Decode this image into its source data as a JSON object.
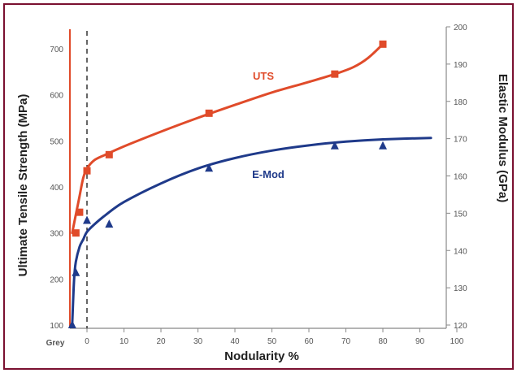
{
  "colors": {
    "frame": "#7a1030",
    "uts": "#e04b2a",
    "emod": "#1f3a8a",
    "axis": "#555555",
    "dashed": "#000000"
  },
  "chart_data": {
    "type": "scatter",
    "xlabel": "Nodularity %",
    "x_special_label": "Grey",
    "x_ticks": [
      0,
      10,
      20,
      30,
      40,
      50,
      60,
      70,
      80,
      90,
      100
    ],
    "xlim": [
      -4,
      100
    ],
    "ylabel_left": "Ultimate Tensile Strength (MPa)",
    "ylim_left": [
      100,
      750
    ],
    "yticks_left": [
      100,
      200,
      300,
      400,
      500,
      600,
      700
    ],
    "ylabel_right": "Elastic Modulus (GPa)",
    "ylim_right": [
      120,
      200
    ],
    "yticks_right": [
      120,
      130,
      140,
      150,
      160,
      170,
      180,
      190,
      200
    ],
    "reference_line_x": 0,
    "series": [
      {
        "name": "UTS",
        "axis": "left",
        "marker": "square",
        "color": "#e04b2a",
        "points": [
          {
            "x": -3,
            "y": 300
          },
          {
            "x": -2,
            "y": 345
          },
          {
            "x": 0,
            "y": 435
          },
          {
            "x": 6,
            "y": 470
          },
          {
            "x": 33,
            "y": 560
          },
          {
            "x": 67,
            "y": 645
          },
          {
            "x": 80,
            "y": 710
          }
        ],
        "fit": [
          {
            "x": -4,
            "y": 300
          },
          {
            "x": -3,
            "y": 340
          },
          {
            "x": -2,
            "y": 380
          },
          {
            "x": -1,
            "y": 420
          },
          {
            "x": 0,
            "y": 440
          },
          {
            "x": 2,
            "y": 458
          },
          {
            "x": 5,
            "y": 470
          },
          {
            "x": 10,
            "y": 488
          },
          {
            "x": 20,
            "y": 520
          },
          {
            "x": 30,
            "y": 550
          },
          {
            "x": 40,
            "y": 578
          },
          {
            "x": 50,
            "y": 605
          },
          {
            "x": 60,
            "y": 628
          },
          {
            "x": 67,
            "y": 645
          },
          {
            "x": 72,
            "y": 660
          },
          {
            "x": 76,
            "y": 680
          },
          {
            "x": 80,
            "y": 710
          }
        ]
      },
      {
        "name": "E-Mod",
        "axis": "right",
        "marker": "triangle",
        "color": "#1f3a8a",
        "points": [
          {
            "x": -4,
            "y": 120
          },
          {
            "x": -3,
            "y": 134
          },
          {
            "x": 0,
            "y": 148
          },
          {
            "x": 6,
            "y": 147
          },
          {
            "x": 33,
            "y": 162
          },
          {
            "x": 67,
            "y": 168
          },
          {
            "x": 80,
            "y": 168
          }
        ],
        "fit": [
          {
            "x": -4,
            "y": 120
          },
          {
            "x": -3.5,
            "y": 132
          },
          {
            "x": -3,
            "y": 137
          },
          {
            "x": -2,
            "y": 141
          },
          {
            "x": -1,
            "y": 143
          },
          {
            "x": 0,
            "y": 145
          },
          {
            "x": 2,
            "y": 147
          },
          {
            "x": 5,
            "y": 149.5
          },
          {
            "x": 10,
            "y": 153
          },
          {
            "x": 20,
            "y": 158
          },
          {
            "x": 30,
            "y": 162
          },
          {
            "x": 40,
            "y": 164.8
          },
          {
            "x": 50,
            "y": 166.8
          },
          {
            "x": 60,
            "y": 168.2
          },
          {
            "x": 70,
            "y": 169.2
          },
          {
            "x": 80,
            "y": 169.8
          },
          {
            "x": 93,
            "y": 170.2
          }
        ]
      }
    ]
  }
}
